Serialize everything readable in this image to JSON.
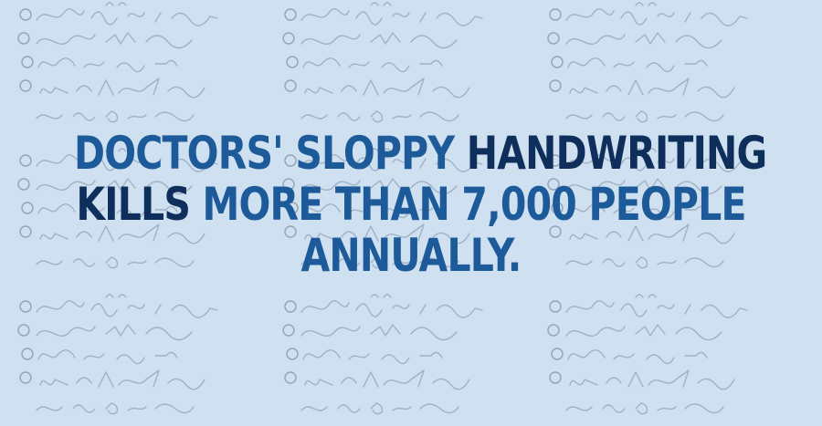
{
  "headline": {
    "line1": {
      "part1": "DOCTORS' SLOPPY",
      "part2": "HANDWRITING"
    },
    "line2": {
      "part1": "KILLS",
      "part2": "MORE THAN 7,000 PEOPLE"
    },
    "line3": {
      "part1": "ANNUALLY."
    }
  },
  "colors": {
    "background": "#cfe0f1",
    "headline_mid_blue": "#1d5a9a",
    "headline_dark_blue": "#0e2f5c",
    "scribble": "#7f8fa0"
  }
}
